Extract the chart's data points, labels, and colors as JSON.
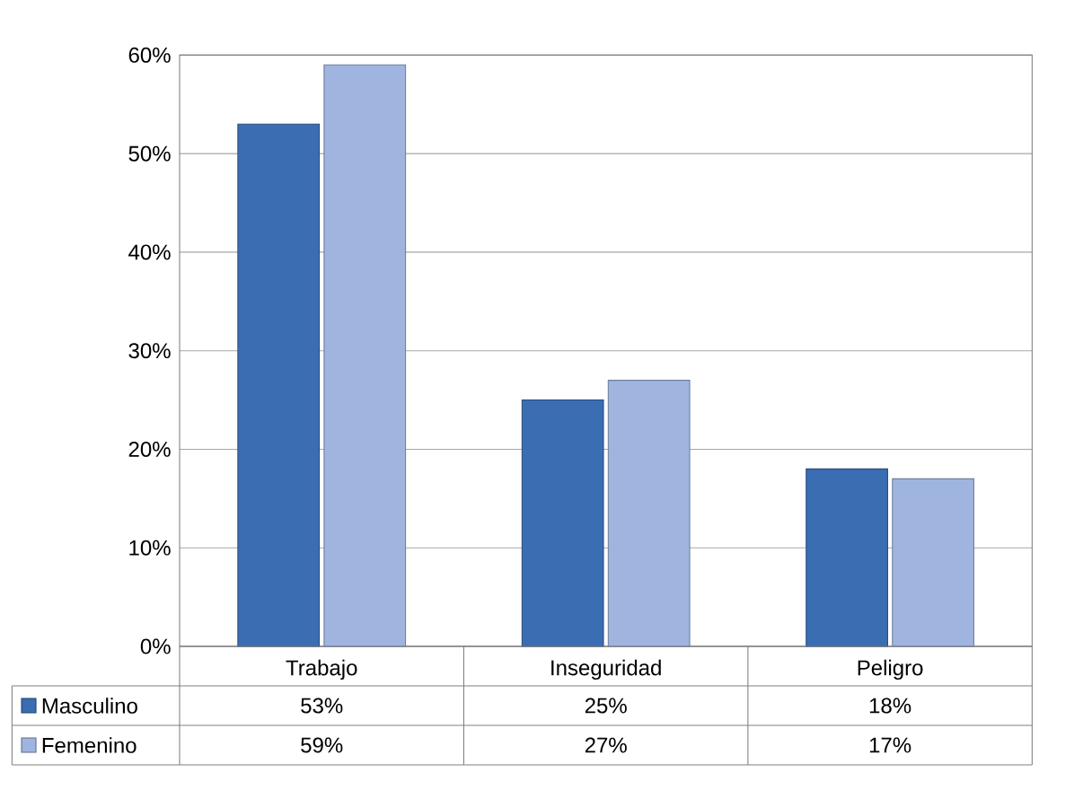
{
  "chart_data": {
    "type": "bar",
    "categories": [
      "Trabajo",
      "Inseguridad",
      "Peligro"
    ],
    "series": [
      {
        "name": "Masculino",
        "color": "#3b6db3",
        "values": [
          53,
          25,
          18
        ],
        "value_labels": [
          "53%",
          "25%",
          "18%"
        ]
      },
      {
        "name": "Femenino",
        "color": "#9fb5e0",
        "values": [
          59,
          27,
          17
        ],
        "value_labels": [
          "59%",
          "27%",
          "17%"
        ]
      }
    ],
    "ylim": [
      0,
      60
    ],
    "yticks": [
      {
        "value": 0,
        "label": "0%"
      },
      {
        "value": 10,
        "label": "10%"
      },
      {
        "value": 20,
        "label": "20%"
      },
      {
        "value": 30,
        "label": "30%"
      },
      {
        "value": 40,
        "label": "40%"
      },
      {
        "value": 50,
        "label": "50%"
      },
      {
        "value": 60,
        "label": "60%"
      }
    ],
    "grid": "y",
    "legend": "bottom left"
  }
}
